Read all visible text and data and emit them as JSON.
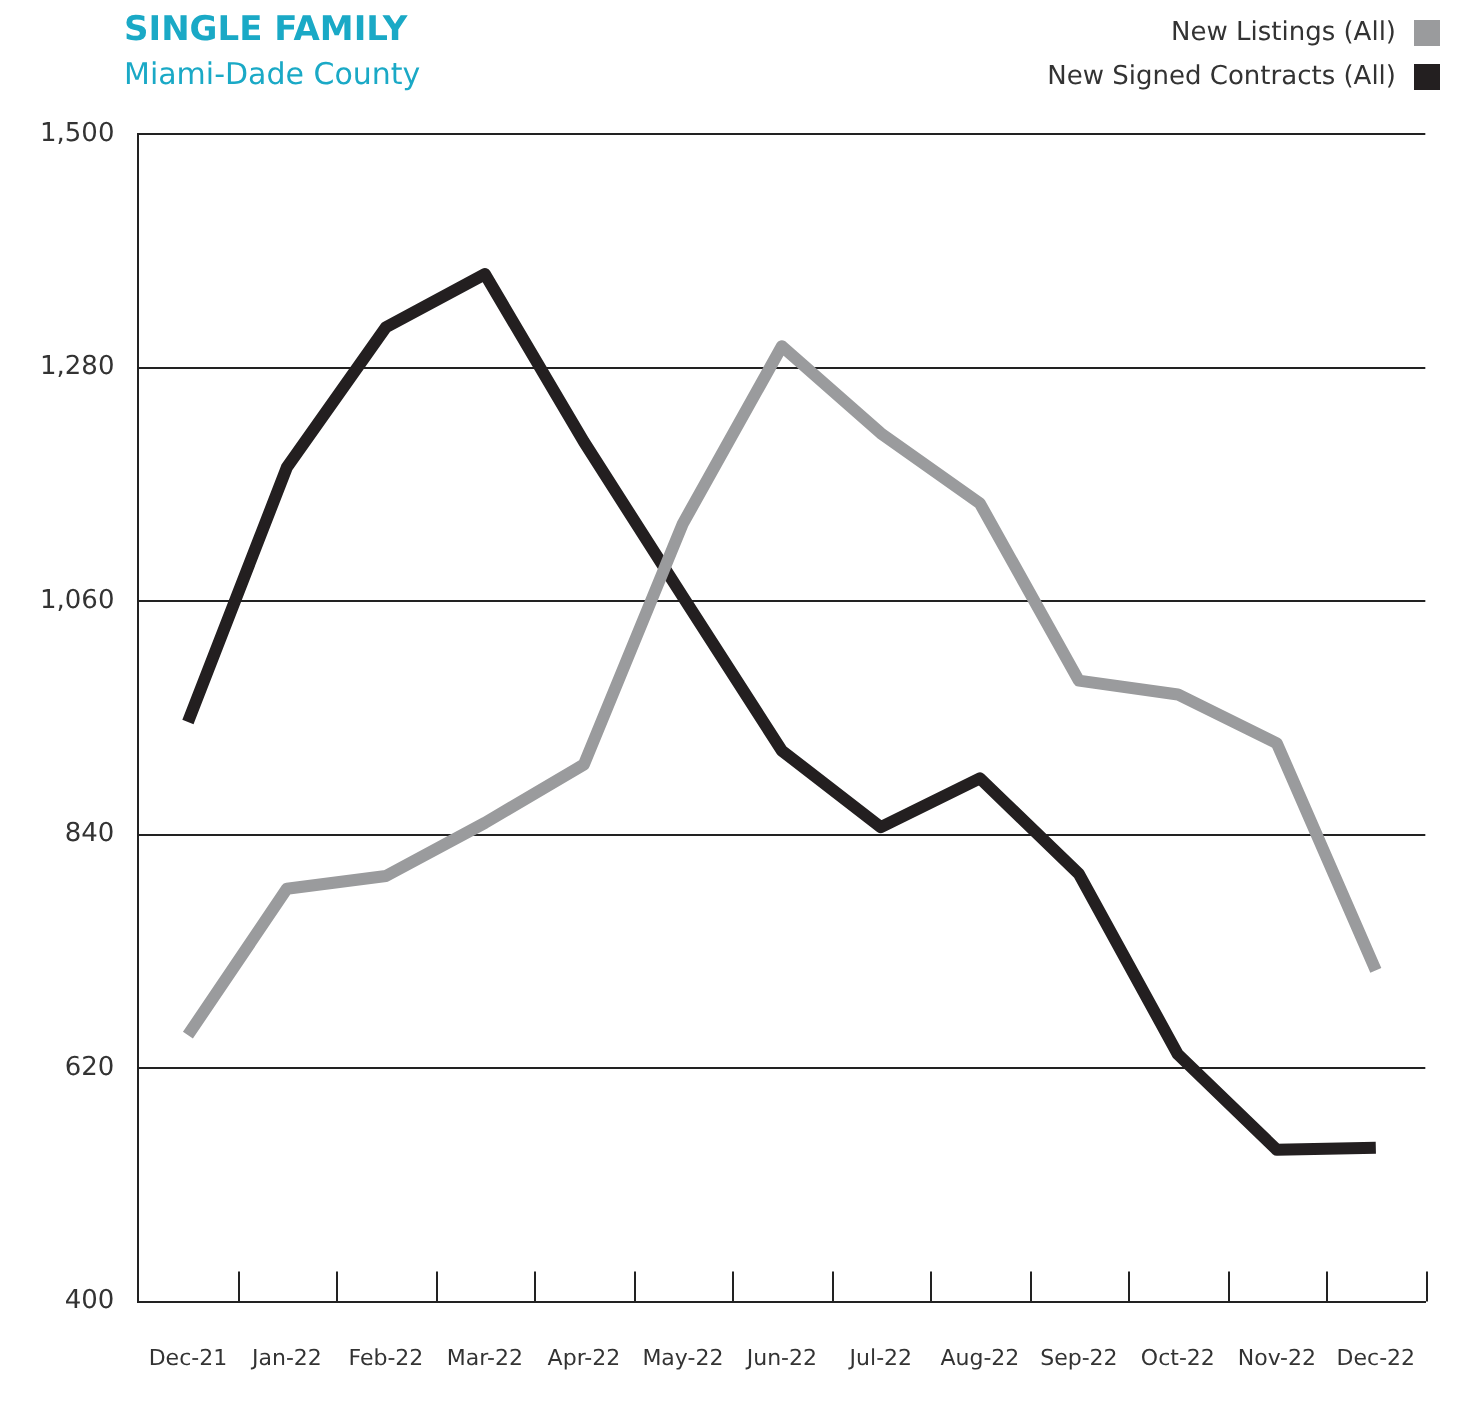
{
  "chart_data": {
    "type": "line",
    "title": "SINGLE FAMILY",
    "subtitle": "Miami-Dade County",
    "categories": [
      "Dec-21",
      "Jan-22",
      "Feb-22",
      "Mar-22",
      "Apr-22",
      "May-22",
      "Jun-22",
      "Jul-22",
      "Aug-22",
      "Sep-22",
      "Oct-22",
      "Nov-22",
      "Dec-22"
    ],
    "series": [
      {
        "name": "New Listings (All)",
        "color": "#9a9b9d",
        "values": [
          651,
          789,
          801,
          851,
          906,
          1133,
          1300,
          1218,
          1152,
          985,
          972,
          926,
          712
        ]
      },
      {
        "name": "New Signed Contracts (All)",
        "color": "#231f20",
        "values": [
          946,
          1186,
          1318,
          1368,
          1210,
          1064,
          919,
          847,
          893,
          803,
          633,
          543,
          545
        ]
      }
    ],
    "ylim": [
      400,
      1500
    ],
    "yticks": [
      400,
      620,
      840,
      {
        "value": 1060,
        "label": "1,060"
      },
      {
        "value": 1280,
        "label": "1,280"
      },
      {
        "value": 1500,
        "label": "1,500"
      }
    ],
    "grid": "y",
    "legend": "top right",
    "marker": "none",
    "line_style": "solid"
  }
}
